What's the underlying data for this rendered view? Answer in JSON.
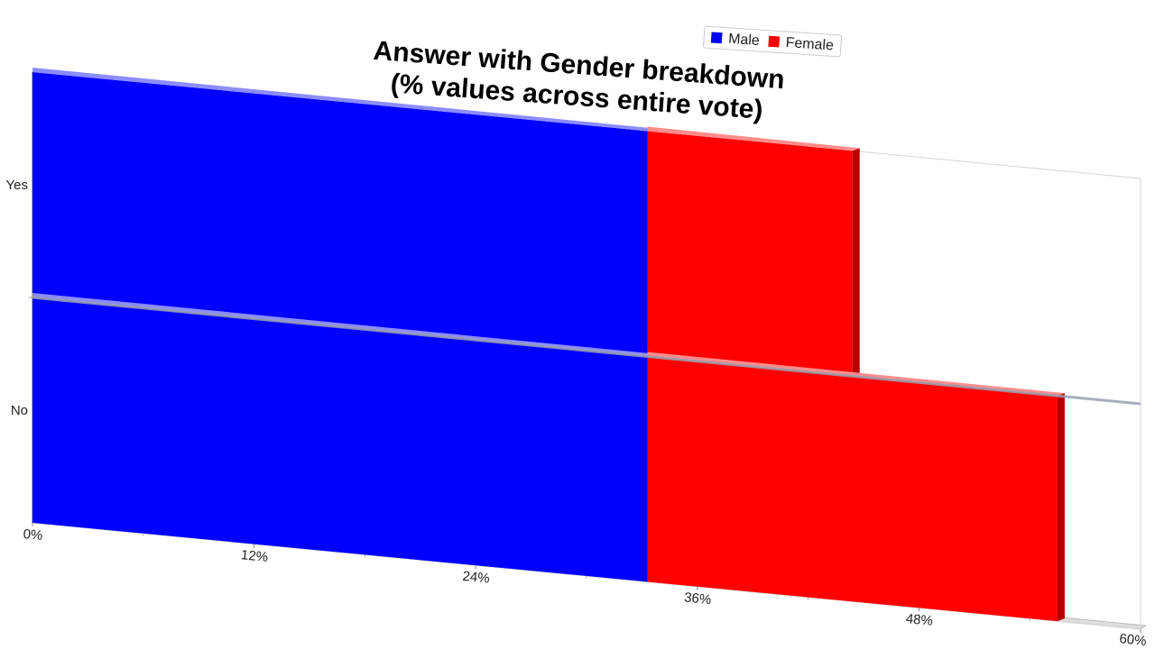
{
  "chart_data": {
    "type": "bar",
    "orientation": "horizontal",
    "stacked": true,
    "title_lines": [
      "Answer with Gender breakdown",
      "(% values across entire vote)"
    ],
    "categories": [
      "Yes",
      "No"
    ],
    "series": [
      {
        "name": "Male",
        "values": [
          33.3,
          33.3
        ],
        "color": "#0000ff"
      },
      {
        "name": "Female",
        "values": [
          11.1,
          22.2
        ],
        "color": "#ff0000"
      }
    ],
    "x_ticks": [
      "0%",
      "12%",
      "24%",
      "36%",
      "48%",
      "60%"
    ],
    "xlim": [
      0,
      60
    ],
    "legend_position": "top-right",
    "three_d": true,
    "grid": false
  }
}
